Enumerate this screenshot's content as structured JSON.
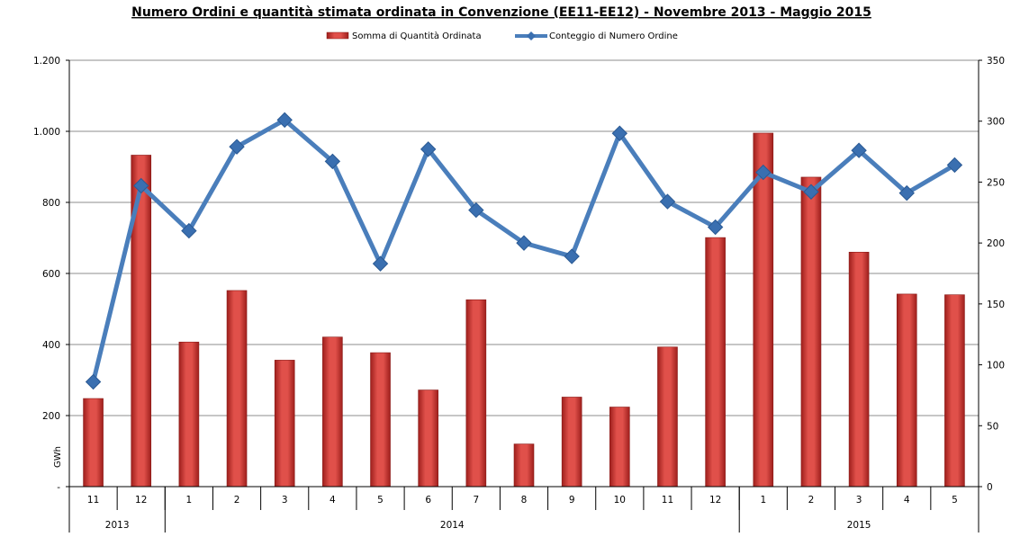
{
  "chart_data": {
    "type": "bar+line",
    "title": "Numero Ordini e quantità stimata ordinata in Convenzione (EE11-EE12) - Novembre 2013 - Maggio 2015",
    "ylabel": "GWh",
    "y_left_ticks": [
      "-",
      "200",
      "400",
      "600",
      "800",
      "1.000",
      "1.200"
    ],
    "y_left_range": [
      0,
      1200
    ],
    "y_right_ticks": [
      "0",
      "50",
      "100",
      "150",
      "200",
      "250",
      "300",
      "350"
    ],
    "y_right_range": [
      0,
      350
    ],
    "grid": true,
    "legend_position": "top-center",
    "categories": [
      "11",
      "12",
      "1",
      "2",
      "3",
      "4",
      "5",
      "6",
      "7",
      "8",
      "9",
      "10",
      "11",
      "12",
      "1",
      "2",
      "3",
      "4",
      "5"
    ],
    "year_groups": [
      {
        "label": "2013",
        "count": 2
      },
      {
        "label": "2014",
        "count": 12
      },
      {
        "label": "2015",
        "count": 5
      }
    ],
    "series": [
      {
        "name": "Somma di Quantità Ordinata",
        "type": "bar",
        "axis": "left",
        "color": "#c0302c",
        "values": [
          248,
          933,
          407,
          552,
          356,
          421,
          377,
          272,
          526,
          120,
          252,
          224,
          393,
          701,
          995,
          871,
          660,
          542,
          540
        ]
      },
      {
        "name": "Conteggio di Numero Ordine",
        "type": "line",
        "axis": "right",
        "color": "#4a7ebb",
        "values": [
          86,
          247,
          210,
          279,
          301,
          267,
          183,
          277,
          227,
          200,
          189,
          290,
          234,
          213,
          258,
          242,
          276,
          241,
          264
        ]
      }
    ]
  }
}
